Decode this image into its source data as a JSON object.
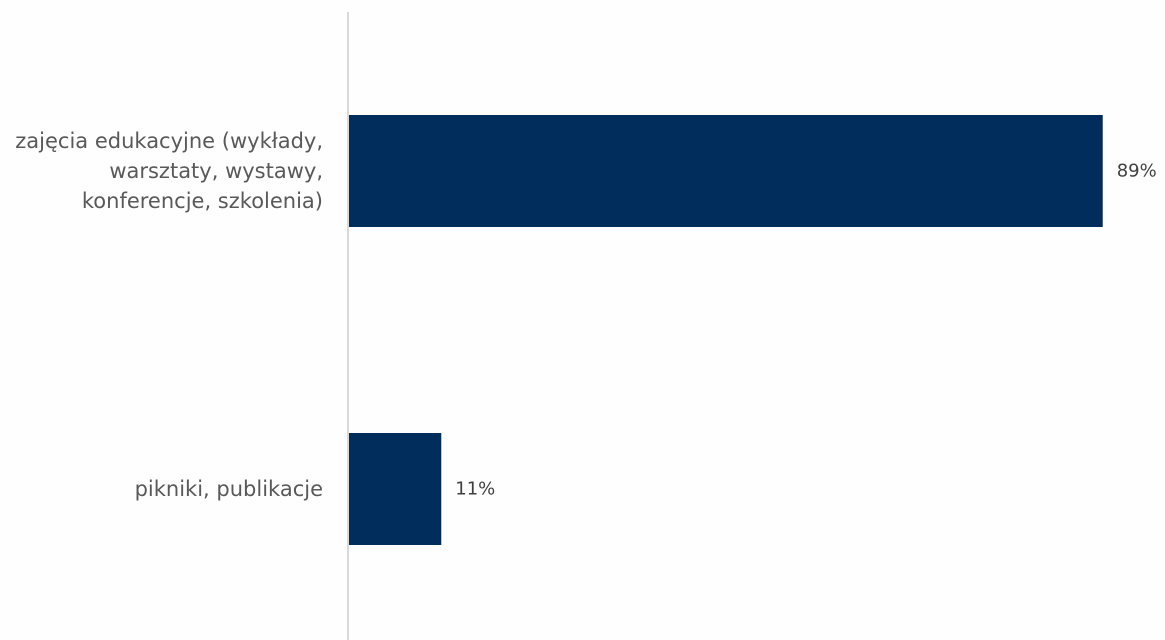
{
  "chart_data": {
    "type": "bar",
    "orientation": "horizontal",
    "categories": [
      [
        "zajęcia edukacyjne (wykłady,",
        "warsztaty, wystawy,",
        "konferencje, szkolenia)"
      ],
      [
        "pikniki, publikacje"
      ]
    ],
    "values": [
      89,
      11
    ],
    "value_labels": [
      "89%",
      "11%"
    ],
    "unit": "%",
    "xlim": [
      0,
      100
    ],
    "bar_color": "#002d5b",
    "axis_color": "#d9d9d9",
    "grid": false,
    "legend": "none",
    "title": "",
    "xlabel": "",
    "ylabel": ""
  }
}
